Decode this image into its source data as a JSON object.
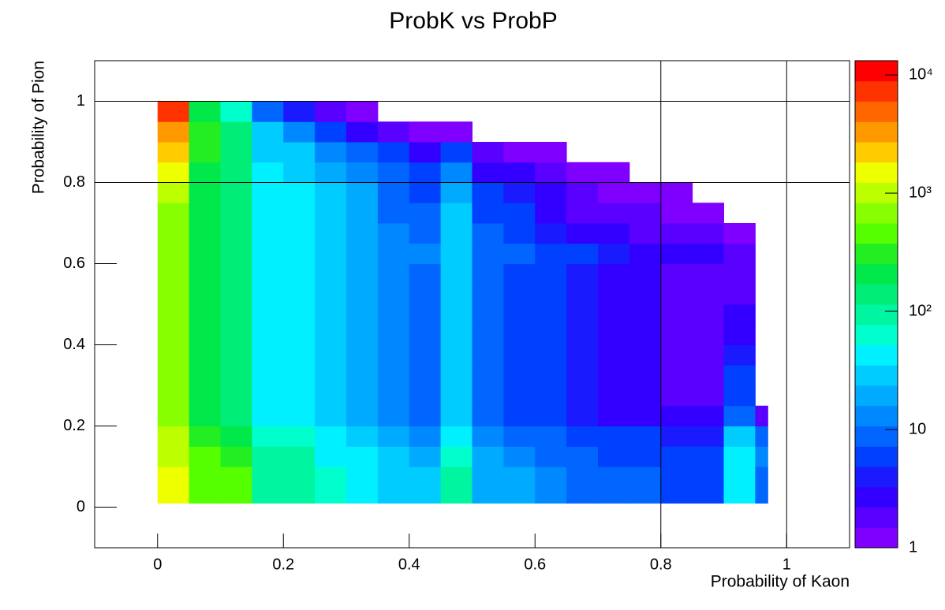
{
  "chart_data": {
    "type": "heatmap",
    "title": "ProbK vs ProbP",
    "x_label": "Probability of Kaon",
    "y_label": "Probability of Pion",
    "xlim": [
      -0.1,
      1.1
    ],
    "ylim": [
      -0.1,
      1.1
    ],
    "xticks": [
      0,
      0.2,
      0.4,
      0.6,
      0.8,
      1
    ],
    "yticks": [
      0,
      0.2,
      0.4,
      0.6,
      0.8,
      1
    ],
    "zlim": [
      1,
      13200
    ],
    "zscale": "log",
    "zticks": [
      1,
      10,
      {
        "value": 100,
        "label": "10²"
      },
      {
        "value": 1000,
        "label": "10³"
      },
      {
        "value": 10000,
        "label": "10⁴"
      }
    ],
    "vlines": [
      0.8,
      1
    ],
    "hlines": [
      0.8,
      1
    ],
    "palette": [
      "#7f00ff",
      "#5a00ff",
      "#3300ff",
      "#1a1aff",
      "#0040ff",
      "#0066ff",
      "#0088ff",
      "#00aaff",
      "#00ccff",
      "#00f0ff",
      "#00ffcc",
      "#00f5a0",
      "#00ee77",
      "#00e84a",
      "#22ee22",
      "#55ff00",
      "#88ff00",
      "#bbff00",
      "#eeff00",
      "#ffcc00",
      "#ff9900",
      "#ff6600",
      "#ff3300",
      "#ff0000"
    ],
    "xbins": [
      0,
      0.05,
      0.1,
      0.15,
      0.2,
      0.25,
      0.3,
      0.35,
      0.4,
      0.45,
      0.5,
      0.55,
      0.6,
      0.65,
      0.7,
      0.75,
      0.8,
      0.85,
      0.9,
      0.95,
      0.97
    ],
    "ybins": [
      0.01,
      0.05,
      0.1,
      0.15,
      0.2,
      0.25,
      0.3,
      0.35,
      0.4,
      0.45,
      0.5,
      0.55,
      0.6,
      0.65,
      0.7,
      0.75,
      0.8,
      0.85,
      0.9,
      0.95,
      1
    ],
    "z": [
      [
        1500,
        500,
        400,
        100,
        100,
        60,
        50,
        30,
        25,
        80,
        20,
        18,
        12,
        10,
        8,
        8,
        6,
        5,
        40,
        8
      ],
      [
        1500,
        500,
        400,
        100,
        100,
        60,
        50,
        30,
        25,
        80,
        20,
        18,
        12,
        10,
        8,
        8,
        6,
        5,
        50,
        10
      ],
      [
        1200,
        400,
        300,
        80,
        80,
        50,
        40,
        25,
        20,
        60,
        16,
        14,
        10,
        8,
        6,
        6,
        5,
        5,
        40,
        15
      ],
      [
        1000,
        300,
        250,
        60,
        60,
        40,
        30,
        20,
        15,
        45,
        12,
        10,
        8,
        6,
        5,
        5,
        4,
        4,
        30,
        8
      ],
      [
        700,
        200,
        150,
        40,
        40,
        25,
        20,
        12,
        10,
        30,
        8,
        7,
        5,
        4,
        3,
        3,
        3,
        3,
        10,
        2
      ],
      [
        700,
        200,
        150,
        40,
        40,
        25,
        20,
        12,
        10,
        30,
        8,
        7,
        5,
        4,
        3,
        3,
        2,
        2,
        6,
        null
      ],
      [
        700,
        200,
        150,
        40,
        40,
        25,
        20,
        12,
        10,
        30,
        8,
        7,
        5,
        4,
        3,
        3,
        2,
        2,
        5,
        null
      ],
      [
        700,
        200,
        150,
        40,
        40,
        25,
        20,
        12,
        10,
        30,
        8,
        7,
        5,
        4,
        3,
        3,
        2,
        2,
        4,
        null
      ],
      [
        700,
        200,
        150,
        40,
        40,
        25,
        20,
        12,
        10,
        30,
        8,
        7,
        5,
        4,
        3,
        3,
        2,
        2,
        3,
        null
      ],
      [
        700,
        200,
        150,
        40,
        40,
        25,
        20,
        12,
        10,
        30,
        8,
        7,
        5,
        4,
        3,
        3,
        2,
        2,
        3,
        null
      ],
      [
        700,
        200,
        150,
        40,
        40,
        25,
        20,
        12,
        10,
        30,
        8,
        7,
        5,
        4,
        3,
        3,
        2,
        2,
        2,
        null
      ],
      [
        700,
        200,
        150,
        40,
        40,
        25,
        20,
        12,
        10,
        30,
        8,
        7,
        5,
        4,
        3,
        3,
        2,
        2,
        2,
        null
      ],
      [
        800,
        220,
        170,
        45,
        45,
        30,
        22,
        14,
        12,
        32,
        9,
        8,
        6,
        5,
        4,
        3,
        3,
        3,
        2,
        null
      ],
      [
        700,
        200,
        150,
        40,
        40,
        25,
        20,
        12,
        10,
        30,
        8,
        6,
        4,
        3,
        3,
        2,
        2,
        2,
        1,
        null
      ],
      [
        800,
        200,
        150,
        40,
        40,
        25,
        18,
        10,
        8,
        25,
        6,
        5,
        3,
        2,
        2,
        2,
        1,
        1,
        null,
        null
      ],
      [
        900,
        200,
        150,
        40,
        40,
        25,
        18,
        10,
        7,
        20,
        5,
        4,
        3,
        2,
        1,
        1,
        1,
        null,
        null,
        null
      ],
      [
        1500,
        250,
        150,
        40,
        35,
        20,
        15,
        8,
        5,
        12,
        3,
        3,
        2,
        1,
        1,
        null,
        null,
        null,
        null,
        null
      ],
      [
        2500,
        300,
        150,
        35,
        25,
        15,
        10,
        5,
        3,
        5,
        2,
        1,
        1,
        null,
        null,
        null,
        null,
        null,
        null,
        null
      ],
      [
        4000,
        300,
        120,
        25,
        12,
        6,
        3,
        2,
        1,
        1,
        null,
        null,
        null,
        null,
        null,
        null,
        null,
        null,
        null,
        null
      ],
      [
        8000,
        200,
        60,
        10,
        4,
        2,
        1,
        null,
        null,
        null,
        null,
        null,
        null,
        null,
        null,
        null,
        null,
        null,
        null,
        null
      ]
    ]
  }
}
